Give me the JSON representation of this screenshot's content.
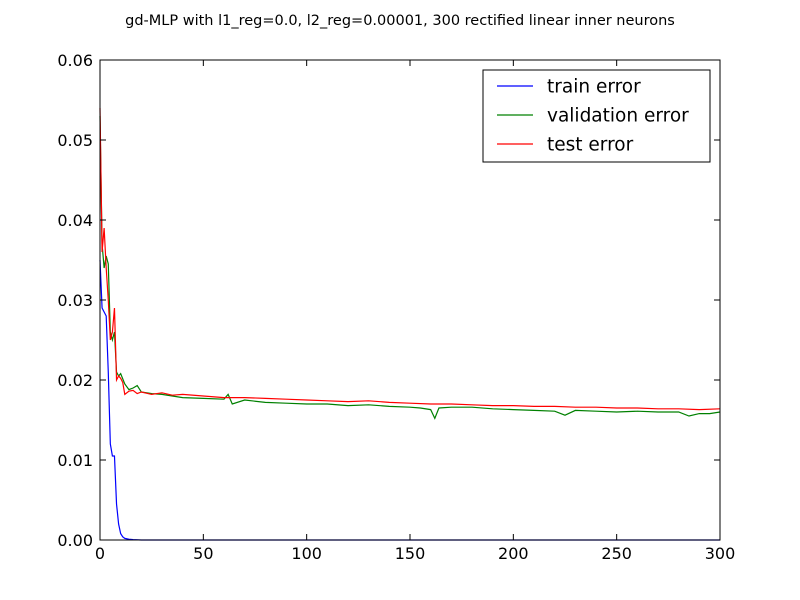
{
  "chart_data": {
    "type": "line",
    "title": "gd-MLP with l1_reg=0.0, l2_reg=0.00001, 300 rectified linear inner neurons",
    "xlabel": "",
    "ylabel": "",
    "xlim": [
      0,
      300
    ],
    "ylim": [
      0,
      0.06
    ],
    "x_ticks": [
      0,
      50,
      100,
      150,
      200,
      250,
      300
    ],
    "y_ticks": [
      0.0,
      0.01,
      0.02,
      0.03,
      0.04,
      0.05,
      0.06
    ],
    "y_tick_labels": [
      "0.00",
      "0.01",
      "0.02",
      "0.03",
      "0.04",
      "0.05",
      "0.06"
    ],
    "grid": false,
    "legend": "top-right",
    "series": [
      {
        "name": "train error",
        "color": "#0000ff",
        "points": [
          [
            0,
            0.035
          ],
          [
            1,
            0.029
          ],
          [
            2,
            0.0285
          ],
          [
            3,
            0.028
          ],
          [
            4,
            0.021
          ],
          [
            5,
            0.012
          ],
          [
            6,
            0.0105
          ],
          [
            7,
            0.0105
          ],
          [
            8,
            0.0045
          ],
          [
            9,
            0.002
          ],
          [
            10,
            0.0008
          ],
          [
            11,
            0.0004
          ],
          [
            12,
            0.0002
          ],
          [
            14,
            0.0001
          ],
          [
            16,
            5e-05
          ],
          [
            20,
            0.0
          ],
          [
            300,
            0.0
          ]
        ]
      },
      {
        "name": "validation error",
        "color": "#008000",
        "points": [
          [
            0,
            0.053
          ],
          [
            1,
            0.037
          ],
          [
            2,
            0.034
          ],
          [
            3,
            0.0355
          ],
          [
            4,
            0.0345
          ],
          [
            5,
            0.026
          ],
          [
            6,
            0.025
          ],
          [
            7,
            0.026
          ],
          [
            8,
            0.021
          ],
          [
            9,
            0.0205
          ],
          [
            10,
            0.0208
          ],
          [
            12,
            0.0195
          ],
          [
            14,
            0.0188
          ],
          [
            16,
            0.019
          ],
          [
            18,
            0.0193
          ],
          [
            20,
            0.0185
          ],
          [
            25,
            0.0183
          ],
          [
            30,
            0.0182
          ],
          [
            35,
            0.018
          ],
          [
            40,
            0.0178
          ],
          [
            50,
            0.0177
          ],
          [
            60,
            0.0176
          ],
          [
            62,
            0.0182
          ],
          [
            64,
            0.017
          ],
          [
            70,
            0.0175
          ],
          [
            80,
            0.0172
          ],
          [
            90,
            0.0171
          ],
          [
            100,
            0.017
          ],
          [
            110,
            0.017
          ],
          [
            120,
            0.0168
          ],
          [
            130,
            0.0169
          ],
          [
            140,
            0.0167
          ],
          [
            150,
            0.0166
          ],
          [
            155,
            0.0165
          ],
          [
            160,
            0.0163
          ],
          [
            162,
            0.0152
          ],
          [
            164,
            0.0165
          ],
          [
            170,
            0.0166
          ],
          [
            180,
            0.0166
          ],
          [
            190,
            0.0164
          ],
          [
            200,
            0.0163
          ],
          [
            210,
            0.0162
          ],
          [
            220,
            0.0161
          ],
          [
            225,
            0.0156
          ],
          [
            230,
            0.0162
          ],
          [
            240,
            0.0161
          ],
          [
            250,
            0.016
          ],
          [
            260,
            0.0161
          ],
          [
            270,
            0.016
          ],
          [
            280,
            0.016
          ],
          [
            285,
            0.0155
          ],
          [
            290,
            0.0158
          ],
          [
            295,
            0.0158
          ],
          [
            300,
            0.016
          ]
        ]
      },
      {
        "name": "test error",
        "color": "#ff0000",
        "points": [
          [
            0,
            0.054
          ],
          [
            1,
            0.036
          ],
          [
            2,
            0.039
          ],
          [
            3,
            0.034
          ],
          [
            4,
            0.03
          ],
          [
            5,
            0.025
          ],
          [
            6,
            0.026
          ],
          [
            7,
            0.029
          ],
          [
            8,
            0.02
          ],
          [
            9,
            0.0205
          ],
          [
            10,
            0.0202
          ],
          [
            11,
            0.0197
          ],
          [
            12,
            0.0182
          ],
          [
            14,
            0.0186
          ],
          [
            16,
            0.0187
          ],
          [
            18,
            0.0183
          ],
          [
            20,
            0.0185
          ],
          [
            25,
            0.0182
          ],
          [
            30,
            0.0184
          ],
          [
            35,
            0.0181
          ],
          [
            40,
            0.0182
          ],
          [
            50,
            0.018
          ],
          [
            60,
            0.0178
          ],
          [
            70,
            0.0178
          ],
          [
            80,
            0.0177
          ],
          [
            90,
            0.0176
          ],
          [
            100,
            0.0175
          ],
          [
            110,
            0.0174
          ],
          [
            120,
            0.0173
          ],
          [
            130,
            0.0174
          ],
          [
            140,
            0.0172
          ],
          [
            150,
            0.0171
          ],
          [
            160,
            0.017
          ],
          [
            170,
            0.017
          ],
          [
            180,
            0.0169
          ],
          [
            190,
            0.0168
          ],
          [
            200,
            0.0168
          ],
          [
            210,
            0.0167
          ],
          [
            220,
            0.0167
          ],
          [
            230,
            0.0166
          ],
          [
            240,
            0.0166
          ],
          [
            250,
            0.0165
          ],
          [
            260,
            0.0165
          ],
          [
            270,
            0.0164
          ],
          [
            280,
            0.0164
          ],
          [
            290,
            0.0163
          ],
          [
            300,
            0.0164
          ]
        ]
      }
    ]
  }
}
